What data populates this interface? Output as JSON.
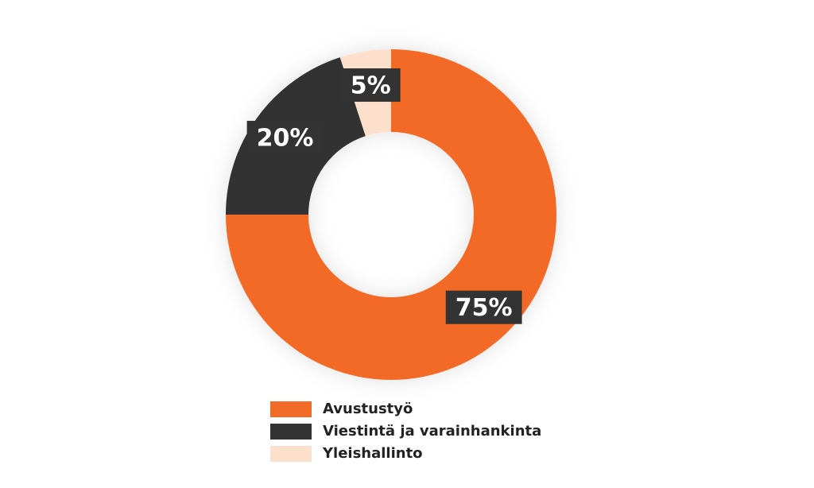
{
  "chart_data": {
    "type": "donut",
    "categories": [
      "Avustustyö",
      "Viestintä ja varainhankinta",
      "Yleishallinto"
    ],
    "values": [
      75,
      20,
      5
    ],
    "value_labels": [
      "75%",
      "20%",
      "5%"
    ],
    "colors": [
      "#f26b27",
      "#333333",
      "#fde0cc"
    ]
  }
}
